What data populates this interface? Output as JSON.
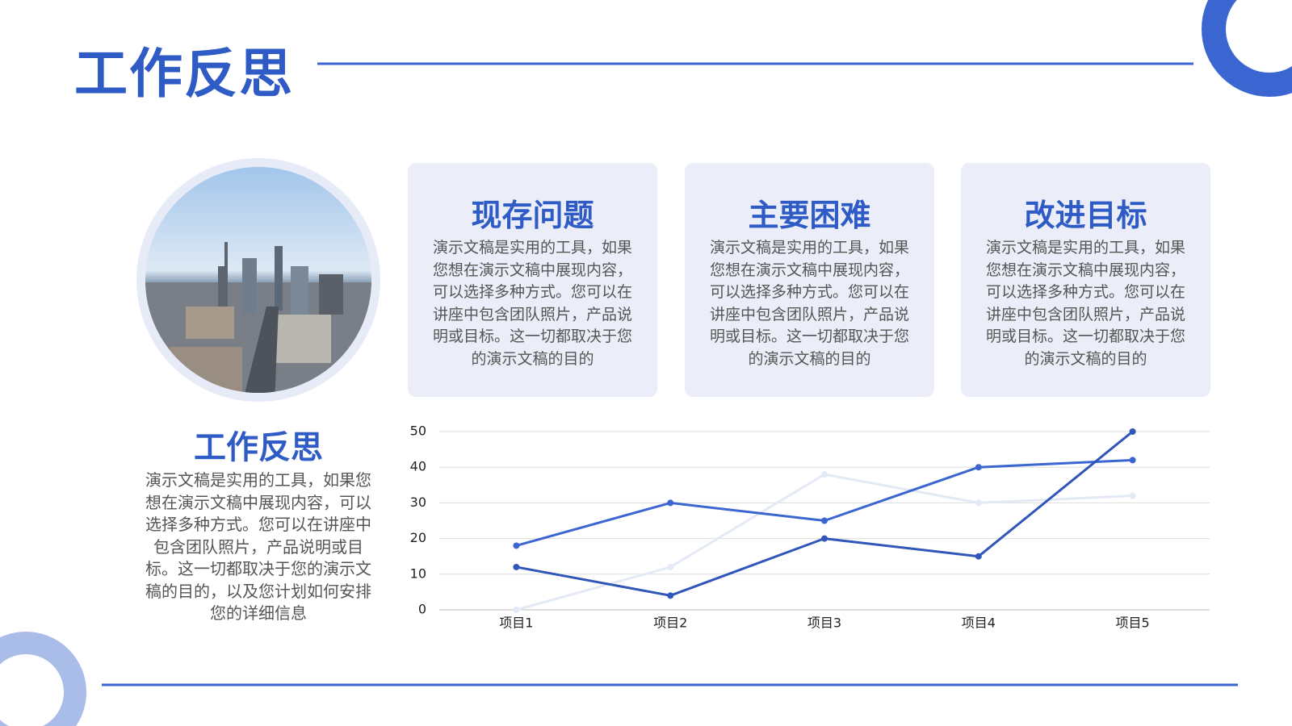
{
  "header": {
    "title": "工作反思"
  },
  "cards": [
    {
      "title": "现存问题",
      "body": "演示文稿是实用的工具，如果您想在演示文稿中展现内容，可以选择多种方式。您可以在讲座中包含团队照片，产品说明或目标。这一切都取决于您的演示文稿的目的"
    },
    {
      "title": "主要困难",
      "body": "演示文稿是实用的工具，如果您想在演示文稿中展现内容，可以选择多种方式。您可以在讲座中包含团队照片，产品说明或目标。这一切都取决于您的演示文稿的目的"
    },
    {
      "title": "改进目标",
      "body": "演示文稿是实用的工具，如果您想在演示文稿中展现内容，可以选择多种方式。您可以在讲座中包含团队照片，产品说明或目标。这一切都取决于您的演示文稿的目的"
    }
  ],
  "summary": {
    "title": "工作反思",
    "body": "演示文稿是实用的工具，如果您想在演示文稿中展现内容，可以选择多种方式。您可以在讲座中包含团队照片，产品说明或目标。这一切都取决于您的演示文稿的目的，以及您计划如何安排您的详细信息"
  },
  "chart_data": {
    "type": "line",
    "categories": [
      "项目1",
      "项目2",
      "项目3",
      "项目4",
      "项目5"
    ],
    "series": [
      {
        "color": "#e4e9f6",
        "values": [
          0,
          12,
          38,
          30,
          32
        ]
      },
      {
        "color": "#3b66d1",
        "values": [
          18,
          30,
          25,
          40,
          42
        ]
      },
      {
        "color": "#2f56b8",
        "values": [
          12,
          4,
          20,
          15,
          50
        ]
      }
    ],
    "ylim": [
      0,
      50
    ],
    "yticks": [
      0,
      10,
      20,
      30,
      40,
      50
    ],
    "grid": true
  }
}
